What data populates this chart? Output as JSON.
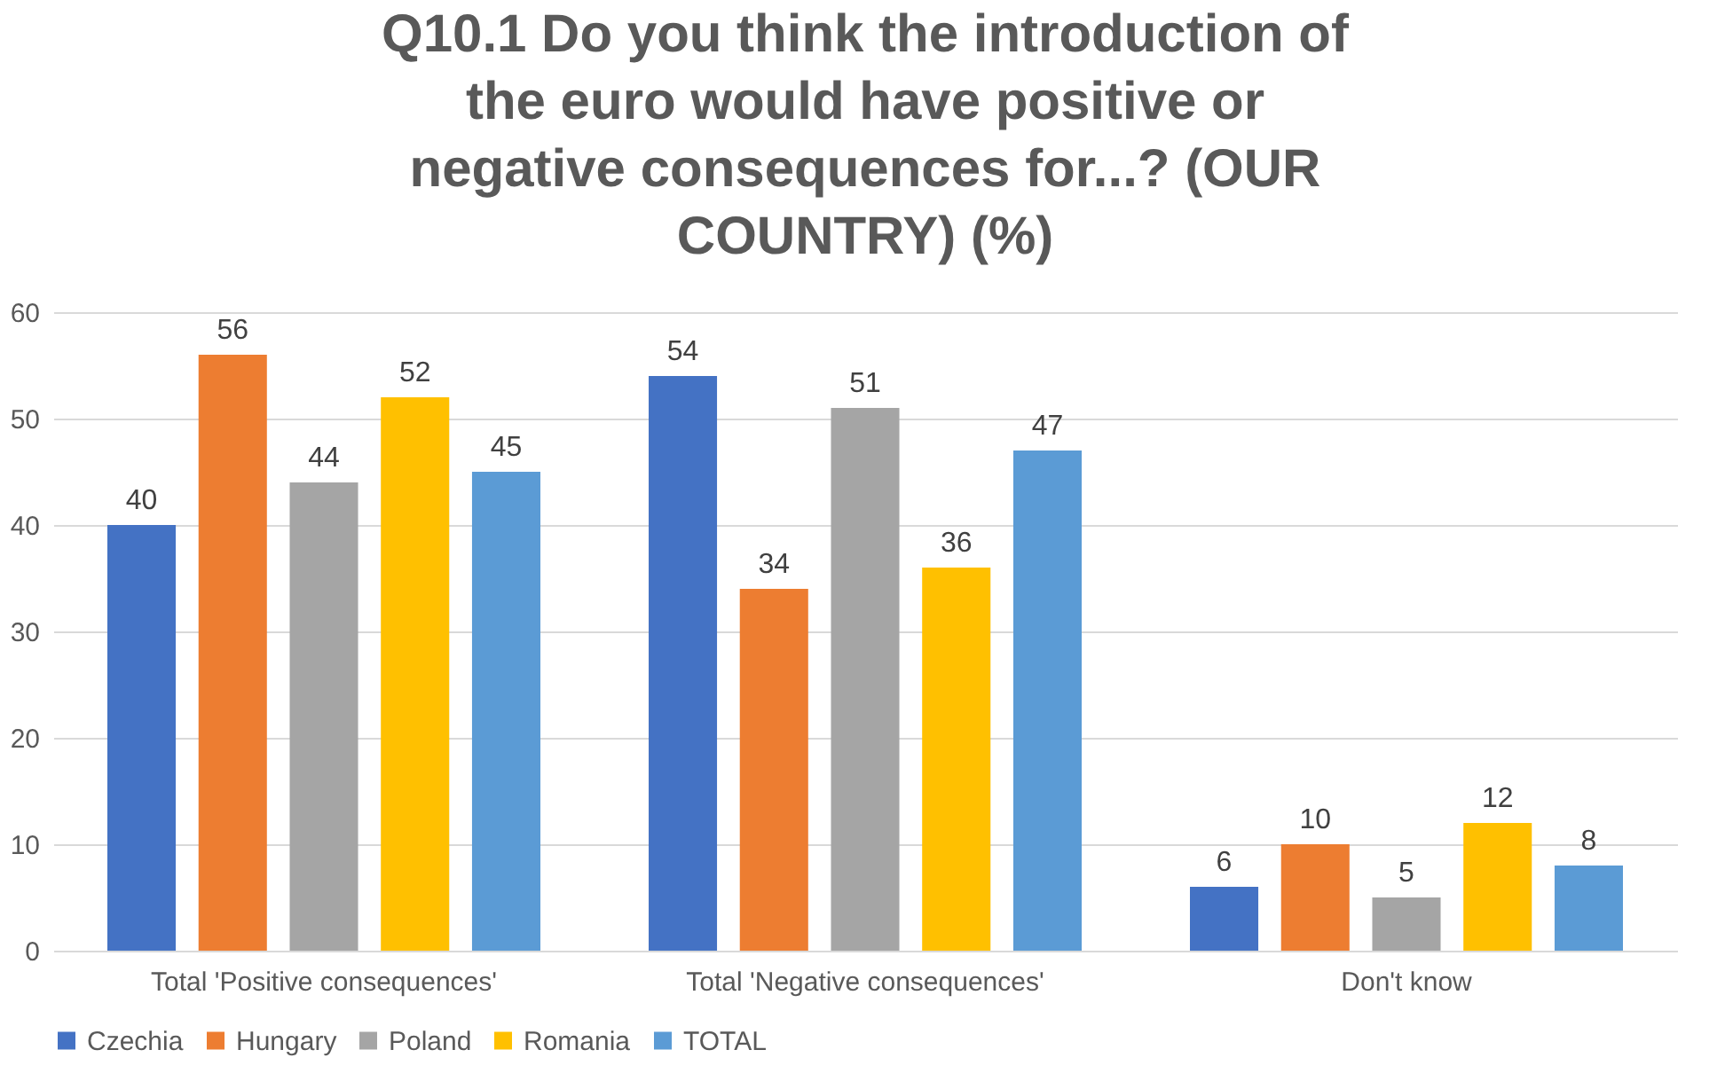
{
  "chart_data": {
    "type": "bar",
    "title": "Q10.1 Do you think the introduction of the euro would have positive or negative consequences for...? (OUR COUNTRY) (%)",
    "categories": [
      "Total 'Positive consequences'",
      "Total 'Negative consequences'",
      "Don't know"
    ],
    "series": [
      {
        "name": "Czechia",
        "color": "#4472c4",
        "values": [
          40,
          54,
          6
        ]
      },
      {
        "name": "Hungary",
        "color": "#ed7d31",
        "values": [
          56,
          34,
          10
        ]
      },
      {
        "name": "Poland",
        "color": "#a5a5a5",
        "values": [
          44,
          51,
          5
        ]
      },
      {
        "name": "Romania",
        "color": "#ffc000",
        "values": [
          52,
          36,
          12
        ]
      },
      {
        "name": "TOTAL",
        "color": "#5b9bd5",
        "values": [
          45,
          47,
          8
        ]
      }
    ],
    "ylim": [
      0,
      60
    ],
    "yticks": [
      0,
      10,
      20,
      30,
      40,
      50,
      60
    ],
    "grid": "y",
    "legend": "bottom",
    "data_labels": true
  }
}
